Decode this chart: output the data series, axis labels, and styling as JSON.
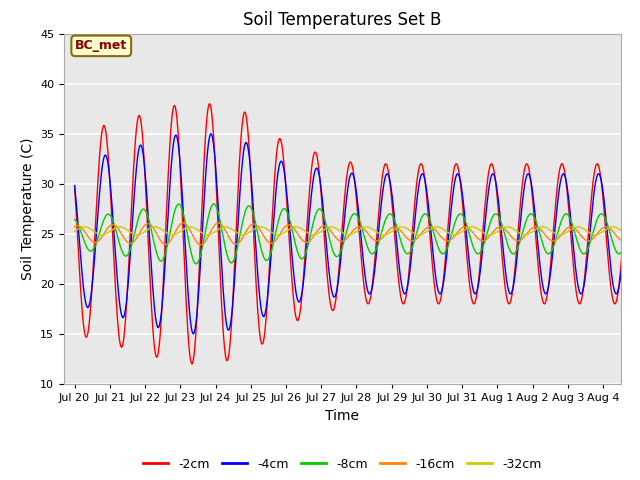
{
  "title": "Soil Temperatures Set B",
  "xlabel": "Time",
  "ylabel": "Soil Temperature (C)",
  "annotation": "BC_met",
  "ylim": [
    10,
    45
  ],
  "x_tick_labels": [
    "Jul 20",
    "Jul 21",
    "Jul 22",
    "Jul 23",
    "Jul 24",
    "Jul 25",
    "Jul 26",
    "Jul 27",
    "Jul 28",
    "Jul 29",
    "Jul 30",
    "Jul 31",
    "Aug 1",
    "Aug 2",
    "Aug 3",
    "Aug 4"
  ],
  "series_colors": [
    "#ff0000",
    "#0000ff",
    "#00cc00",
    "#ff8800",
    "#cccc00"
  ],
  "series_labels": [
    "-2cm",
    "-4cm",
    "-8cm",
    "-16cm",
    "-32cm"
  ],
  "fig_facecolor": "#ffffff",
  "ax_facecolor": "#e8e8e8",
  "grid_color": "#ffffff",
  "title_fontsize": 12,
  "label_fontsize": 10,
  "tick_fontsize": 8,
  "legend_fontsize": 9,
  "amp_2cm": [
    10,
    11,
    12,
    13,
    13,
    12,
    9,
    8,
    7,
    7,
    7,
    7,
    7,
    7,
    7,
    7
  ],
  "amp_4cm": [
    7,
    8,
    9,
    10,
    10,
    9,
    7,
    6.5,
    6,
    6,
    6,
    6,
    6,
    6,
    6,
    6
  ],
  "amp_8cm": [
    1.5,
    2,
    2.5,
    3,
    3,
    2.8,
    2.5,
    2.5,
    2,
    2,
    2,
    2,
    2,
    2,
    2,
    2
  ],
  "amp_16cm": [
    0.8,
    0.9,
    1.0,
    1.1,
    1.1,
    1.0,
    0.9,
    0.8,
    0.7,
    0.7,
    0.7,
    0.7,
    0.7,
    0.7,
    0.7,
    0.7
  ],
  "amp_32cm": [
    0.4,
    0.4,
    0.4,
    0.4,
    0.4,
    0.4,
    0.4,
    0.4,
    0.4,
    0.4,
    0.4,
    0.4,
    0.4,
    0.4,
    0.4,
    0.4
  ],
  "mean_temp": 25.0,
  "phase_lag_4cm": 0.04,
  "phase_lag_8cm": 0.12,
  "phase_lag_16cm": 0.25,
  "phase_lag_32cm": 0.45,
  "daily_peak_hour": 0.58
}
